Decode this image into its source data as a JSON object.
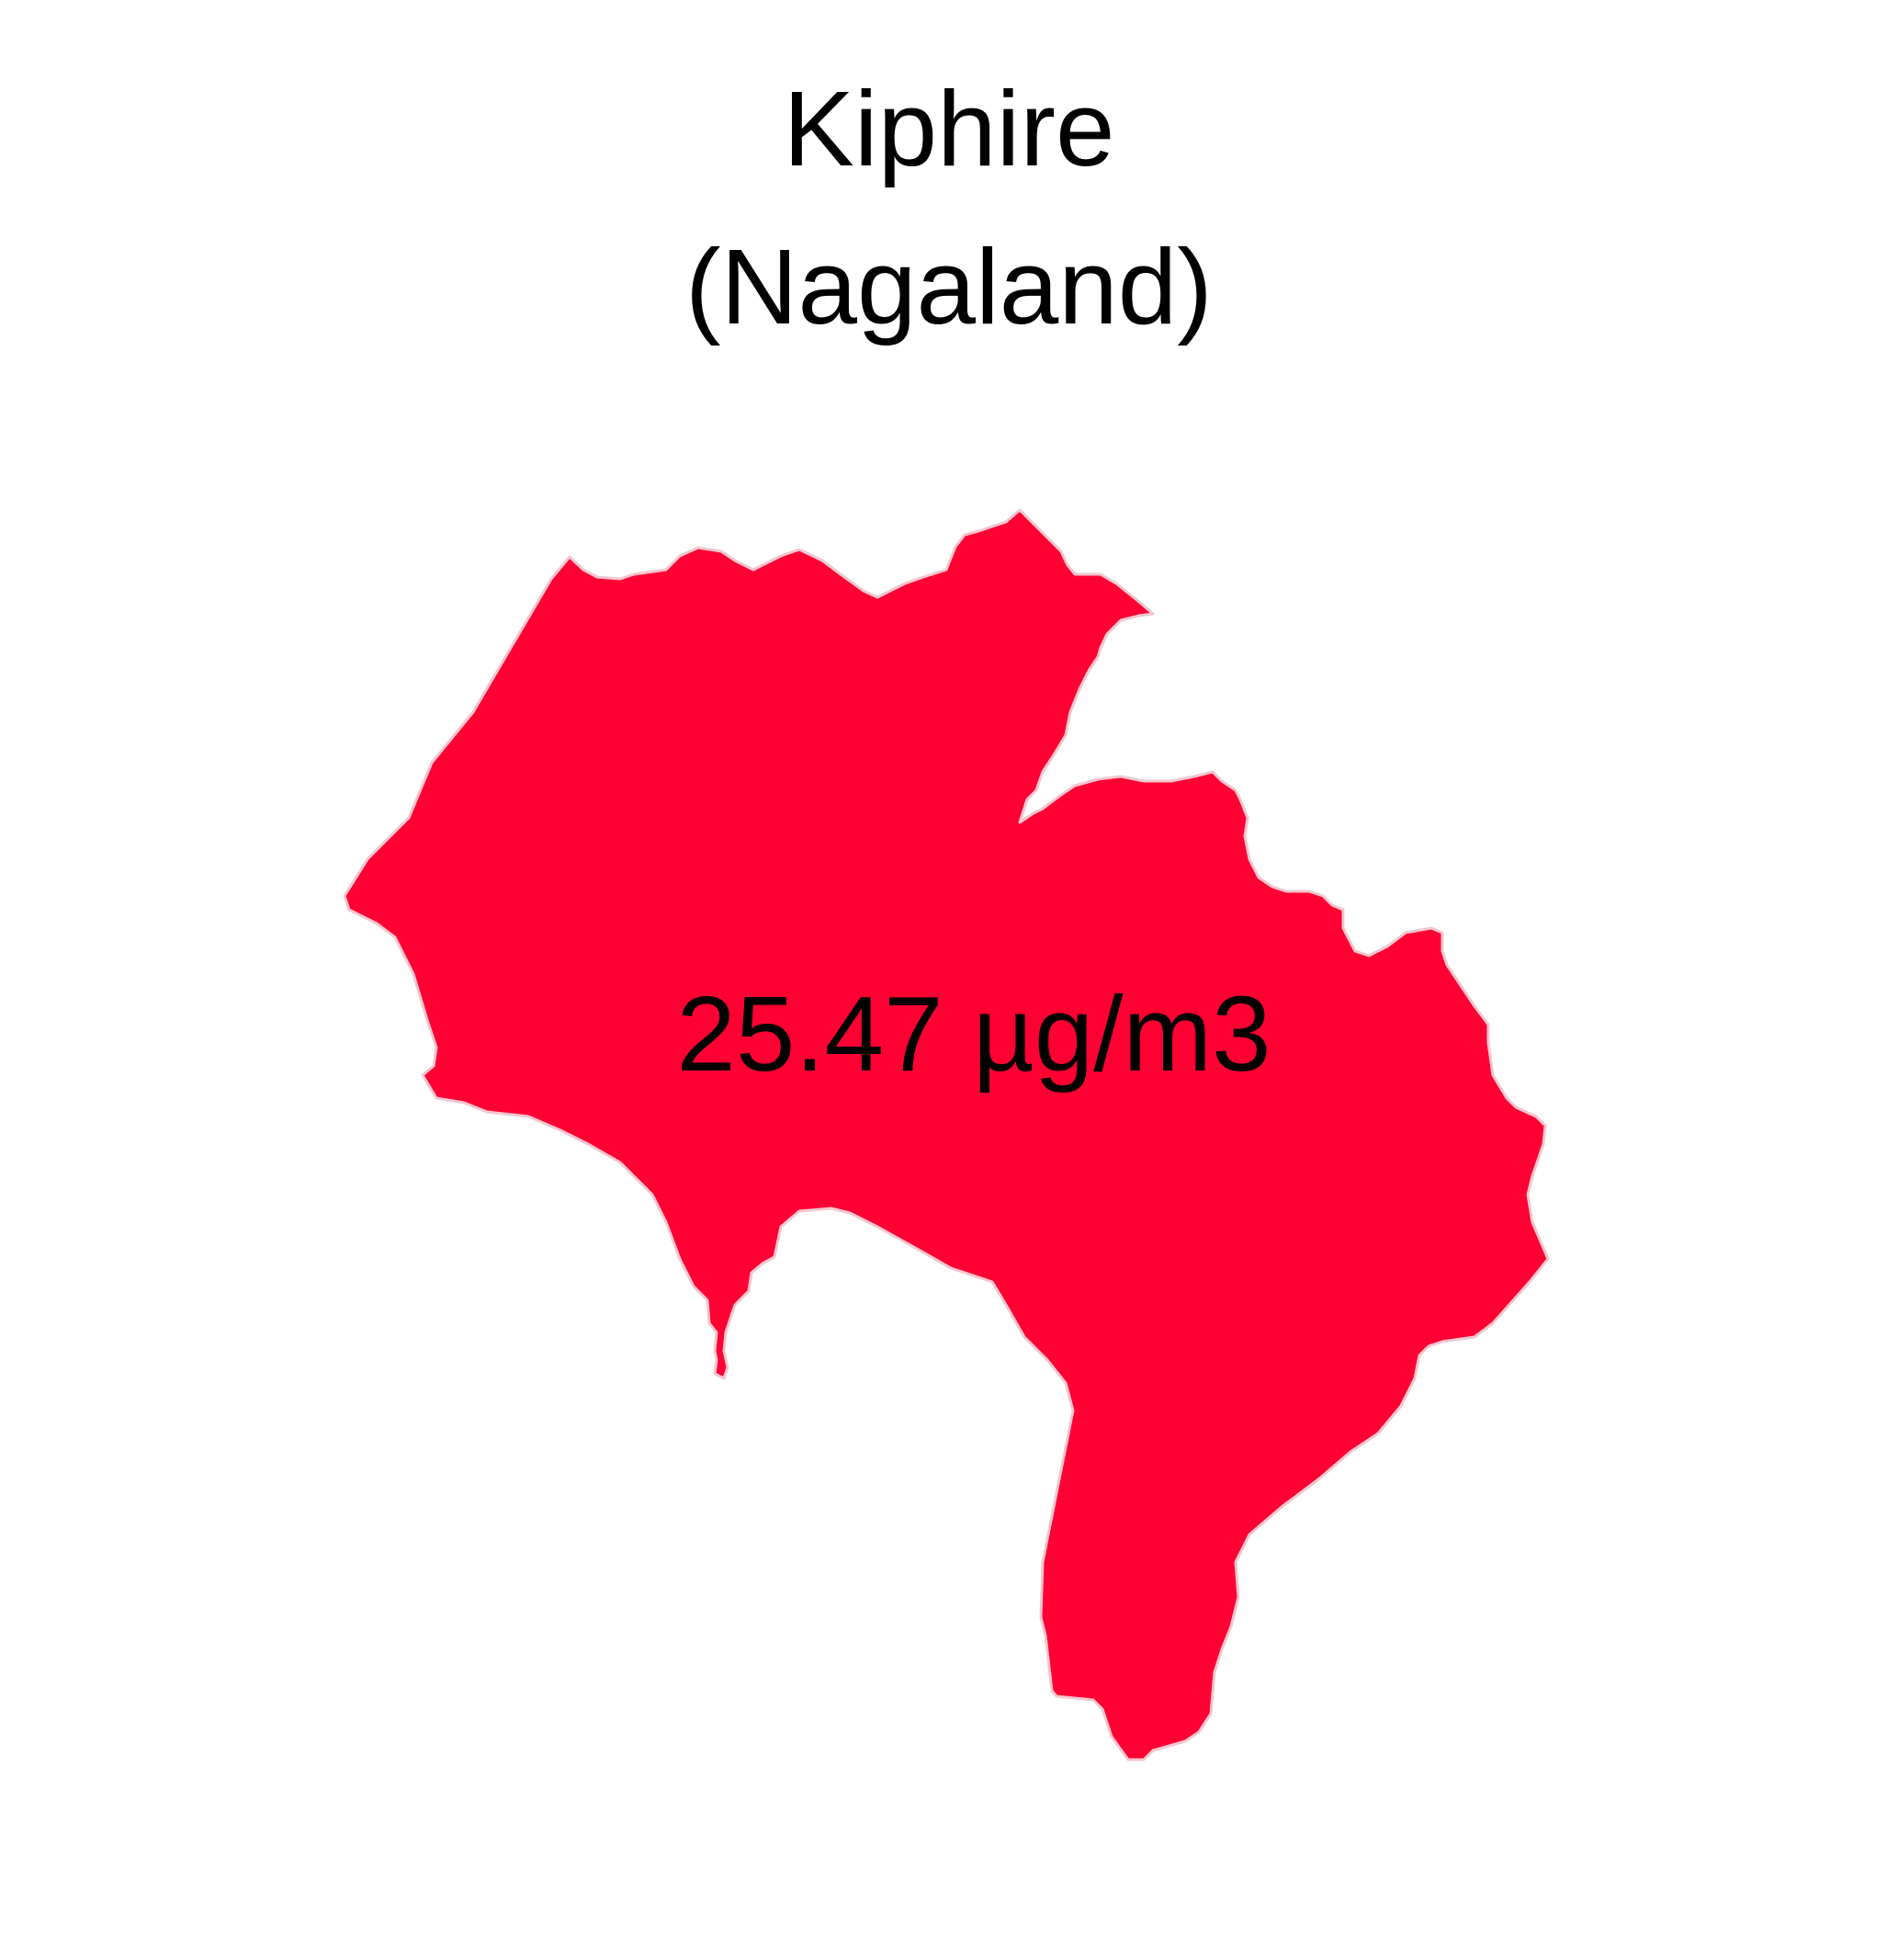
{
  "title": {
    "line1": "Kiphire",
    "line2": "(Nagaland)"
  },
  "region": {
    "name": "Kiphire",
    "fill_color": "#FF0033",
    "stroke_color": "#F4C6CF"
  },
  "value_label": "25.47 µg/m3"
}
